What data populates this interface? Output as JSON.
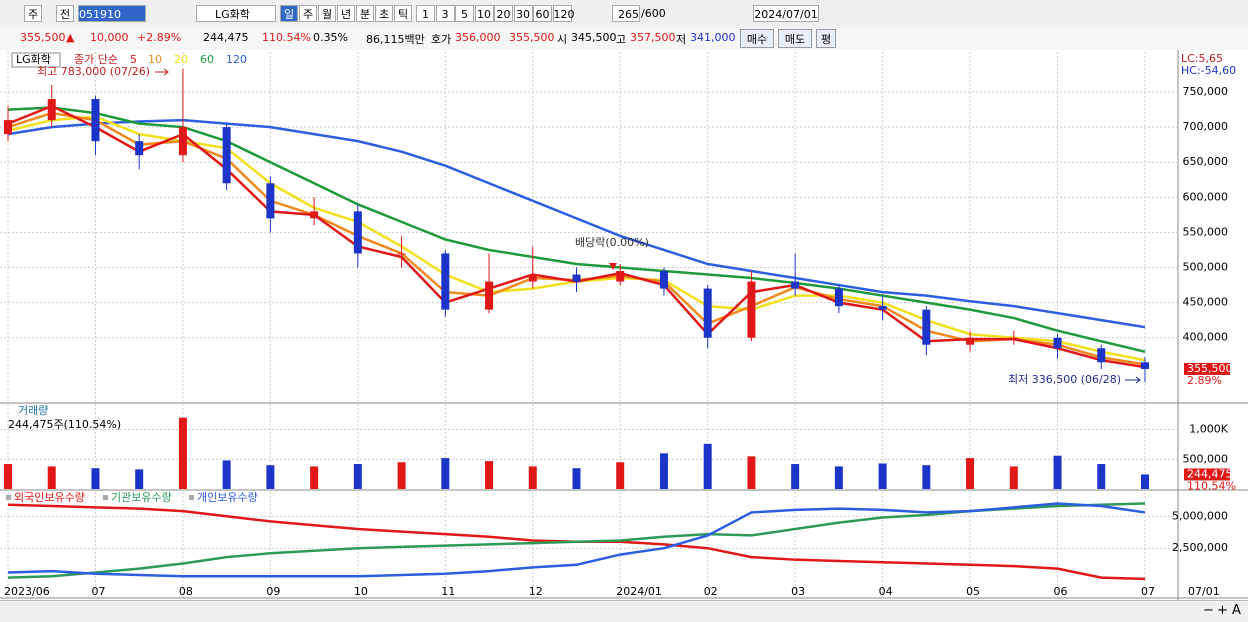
{
  "toolbar": {
    "market": "주",
    "prev": "전",
    "code": "051910",
    "name": "LG화학",
    "periods": [
      "일",
      "주",
      "월",
      "년",
      "분",
      "초",
      "틱"
    ],
    "intervals": [
      "1",
      "3",
      "5",
      "10",
      "20",
      "30",
      "60",
      "120"
    ],
    "count": "265",
    "max": "/600",
    "date": "2024/07/01"
  },
  "quote": {
    "price": "355,500",
    "arrow": "▲",
    "change": "10,000",
    "rate": "+2.89%",
    "volume": "244,475",
    "volume_rate": "110.54%",
    "turnover": "0.35%",
    "amount": "86,115백만",
    "ask_label": "호가",
    "ask": "356,000",
    "bid": "355,500",
    "open_label": "시",
    "open": "345,500",
    "high_label": "고",
    "high": "357,500",
    "low_label": "저",
    "low": "341,000",
    "buy": "매수",
    "sell": "매도",
    "avg": "평"
  },
  "chart_data": [
    {
      "type": "candlestick",
      "title": "LG화학",
      "legend_title": "종가 단순",
      "categories": [
        "2023/06",
        null,
        "07",
        null,
        "08",
        null,
        "09",
        null,
        "10",
        null,
        "11",
        null,
        "12",
        null,
        "2024/01",
        null,
        "02",
        null,
        "03",
        null,
        "04",
        null,
        "05",
        null,
        "06",
        null,
        "07"
      ],
      "open": [
        690000,
        710000,
        740000,
        680000,
        660000,
        700000,
        620000,
        570000,
        580000,
        520000,
        520000,
        440000,
        480000,
        490000,
        480000,
        495000,
        470000,
        400000,
        480000,
        470000,
        445000,
        440000,
        390000,
        400000,
        400000,
        385000,
        365000
      ],
      "high": [
        730000,
        760000,
        745000,
        690000,
        783000,
        705000,
        630000,
        600000,
        590000,
        545000,
        525000,
        520000,
        530000,
        500000,
        505000,
        500000,
        475000,
        495000,
        520000,
        475000,
        460000,
        445000,
        410000,
        410000,
        405000,
        390000,
        372000
      ],
      "low": [
        680000,
        700000,
        660000,
        640000,
        650000,
        610000,
        550000,
        560000,
        500000,
        500000,
        430000,
        435000,
        470000,
        465000,
        475000,
        460000,
        385000,
        395000,
        460000,
        435000,
        425000,
        375000,
        380000,
        390000,
        370000,
        355000,
        336500
      ],
      "close": [
        710000,
        740000,
        680000,
        660000,
        700000,
        620000,
        570000,
        580000,
        520000,
        520000,
        440000,
        480000,
        490000,
        480000,
        495000,
        470000,
        400000,
        480000,
        470000,
        445000,
        440000,
        390000,
        400000,
        400000,
        385000,
        365000,
        355500
      ],
      "up_color": "#e01818",
      "down_color": "#1c34c8",
      "ma": [
        {
          "name": "5",
          "color": "#e01818",
          "values": [
            705000,
            730000,
            700000,
            665000,
            690000,
            640000,
            580000,
            575000,
            530000,
            515000,
            450000,
            470000,
            490000,
            480000,
            492000,
            475000,
            405000,
            465000,
            475000,
            450000,
            440000,
            395000,
            398000,
            398000,
            385000,
            368000,
            358000
          ]
        },
        {
          "name": "10",
          "color": "#f08a1c",
          "values": [
            700000,
            720000,
            710000,
            675000,
            680000,
            655000,
            595000,
            575000,
            545000,
            520000,
            465000,
            460000,
            485000,
            482000,
            488000,
            480000,
            420000,
            445000,
            472000,
            455000,
            445000,
            410000,
            395000,
            398000,
            390000,
            372000,
            362000
          ]
        },
        {
          "name": "20",
          "color": "#f2e01c",
          "values": [
            695000,
            710000,
            715000,
            690000,
            680000,
            670000,
            620000,
            585000,
            565000,
            530000,
            490000,
            465000,
            470000,
            480000,
            485000,
            482000,
            445000,
            440000,
            460000,
            460000,
            450000,
            425000,
            405000,
            400000,
            395000,
            380000,
            368000
          ]
        },
        {
          "name": "60",
          "color": "#1e9a3c",
          "values": [
            725000,
            728000,
            720000,
            705000,
            700000,
            680000,
            650000,
            620000,
            590000,
            565000,
            540000,
            525000,
            515000,
            505000,
            500000,
            495000,
            490000,
            485000,
            478000,
            470000,
            460000,
            450000,
            440000,
            428000,
            410000,
            395000,
            380000
          ]
        },
        {
          "name": "120",
          "color": "#2e5ee0",
          "values": [
            690000,
            700000,
            705000,
            708000,
            710000,
            705000,
            700000,
            690000,
            680000,
            665000,
            645000,
            620000,
            595000,
            570000,
            545000,
            525000,
            505000,
            495000,
            485000,
            475000,
            465000,
            460000,
            452000,
            445000,
            435000,
            425000,
            415000
          ]
        }
      ],
      "ylim": [
        307000,
        807000
      ],
      "yticks": [
        {
          "value": 400000,
          "label": "400,000"
        },
        {
          "value": 450000,
          "label": "450,000"
        },
        {
          "value": 500000,
          "label": "500,000"
        },
        {
          "value": 550000,
          "label": "550,000"
        },
        {
          "value": 600000,
          "label": "600,000"
        },
        {
          "value": 650000,
          "label": "650,000"
        },
        {
          "value": 700000,
          "label": "700,000"
        },
        {
          "value": 750000,
          "label": "750,000"
        }
      ],
      "high_annotation": "최고 783,000 (07/26)",
      "low_annotation": "최저 336,500 (06/28)",
      "event_annotation": "배당락(0.00%)",
      "lc": "LC:5,65",
      "hc": "HC:-54,60",
      "last_label": "355,500",
      "change_label": "2.89%"
    },
    {
      "type": "bar",
      "title": "거래량",
      "subtitle": "244,475주(110.54%)",
      "values": [
        420000,
        380000,
        350000,
        330000,
        1200000,
        480000,
        400000,
        380000,
        420000,
        450000,
        520000,
        470000,
        380000,
        350000,
        450000,
        600000,
        760000,
        550000,
        420000,
        380000,
        430000,
        400000,
        520000,
        380000,
        560000,
        420000,
        244475
      ],
      "ylim": [
        0,
        1430000
      ],
      "yticks": [
        {
          "value": 500000,
          "label": "500,000"
        },
        {
          "value": 1000000,
          "label": "1,000K"
        }
      ],
      "last_label": "244,475",
      "rate_label": "110.54%"
    },
    {
      "type": "line",
      "series": [
        {
          "name": "외국인보유수량",
          "color": "#e01818",
          "values": [
            5900000,
            5800000,
            5700000,
            5600000,
            5400000,
            5000000,
            4600000,
            4300000,
            4000000,
            3800000,
            3600000,
            3400000,
            3100000,
            3000000,
            3000000,
            2800000,
            2500000,
            1800000,
            1600000,
            1500000,
            1400000,
            1300000,
            1200000,
            1100000,
            900000,
            200000,
            100000
          ]
        },
        {
          "name": "기관보유수량",
          "color": "#2e9a5a",
          "values": [
            200000,
            300000,
            600000,
            900000,
            1300000,
            1800000,
            2100000,
            2300000,
            2500000,
            2600000,
            2700000,
            2800000,
            2900000,
            3000000,
            3100000,
            3400000,
            3600000,
            3500000,
            4000000,
            4500000,
            4900000,
            5100000,
            5400000,
            5600000,
            5800000,
            5900000,
            6000000
          ]
        },
        {
          "name": "개인보유수량",
          "color": "#2e5ee0",
          "values": [
            600000,
            700000,
            500000,
            400000,
            300000,
            300000,
            300000,
            300000,
            300000,
            400000,
            500000,
            700000,
            1000000,
            1200000,
            2000000,
            2500000,
            3500000,
            5300000,
            5500000,
            5600000,
            5500000,
            5300000,
            5400000,
            5700000,
            6000000,
            5800000,
            5300000
          ]
        }
      ],
      "ylim": [
        -1400000,
        6900000
      ],
      "yticks": [
        {
          "value": 2500000,
          "label": "2,500,000"
        },
        {
          "value": 5000000,
          "label": "5,000,000"
        }
      ],
      "x_end_label": "07/01"
    }
  ],
  "bottom_toolbar": {
    "zoom_out": "−",
    "zoom_in": "+",
    "font": "A"
  }
}
